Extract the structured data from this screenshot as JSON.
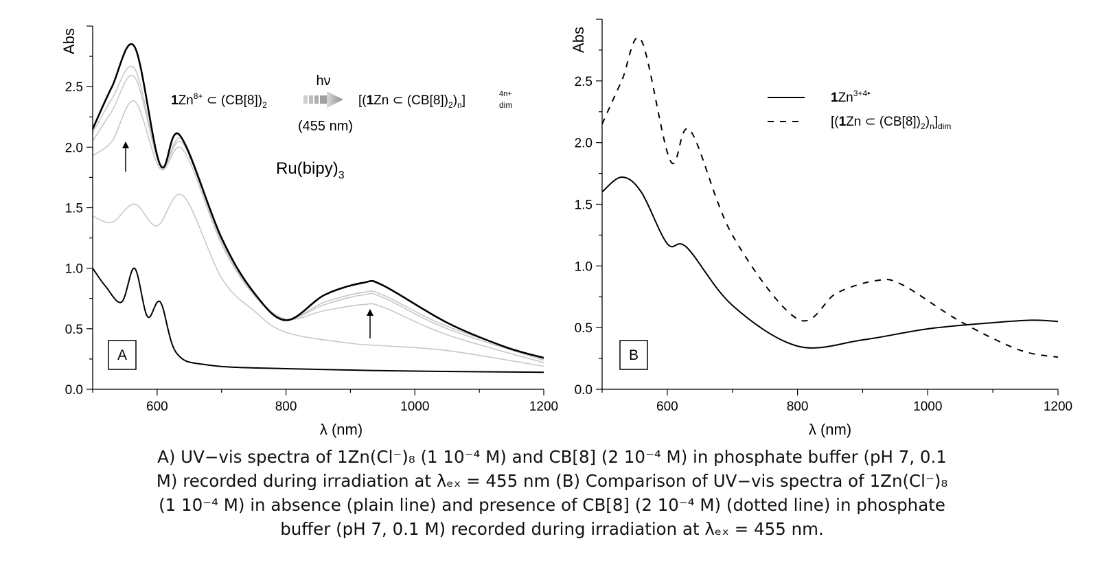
{
  "chart_data": [
    {
      "type": "line",
      "panel_label": "A",
      "ylabel": "Abs",
      "xlabel": "λ (nm)",
      "xlim": [
        500,
        1200
      ],
      "ylim": [
        0,
        3.0
      ],
      "x_ticks": [
        "600",
        "800",
        "1000",
        "1200"
      ],
      "y_ticks": [
        "0.0",
        "0.5",
        "1.0",
        "1.5",
        "2.0",
        "2.5"
      ],
      "grid": false,
      "colors": {
        "final": "#000000",
        "initial": "#000000",
        "intermediate": "#c8c8c8"
      },
      "annotations": {
        "scheme_left": "1Zn8+ ⊂ (CB[8])2",
        "hv": "hν",
        "wavelength": "(455 nm)",
        "scheme_right": "[(1Zn ⊂ (CB[8])2)n]4n+dim",
        "sensitizer": "Ru(bipy)3"
      },
      "series": [
        {
          "role": "initial",
          "style": "solid-black",
          "x": [
            500,
            520,
            545,
            565,
            585,
            605,
            630,
            680,
            800,
            1000,
            1200
          ],
          "y": [
            1.0,
            0.85,
            0.72,
            1.0,
            0.6,
            0.72,
            0.3,
            0.2,
            0.17,
            0.15,
            0.14
          ]
        },
        {
          "role": "intermediate",
          "style": "solid-grey",
          "x": [
            500,
            530,
            565,
            600,
            640,
            700,
            750,
            800,
            900,
            950,
            1050,
            1200
          ],
          "y": [
            1.43,
            1.38,
            1.53,
            1.35,
            1.6,
            0.92,
            0.65,
            0.47,
            0.38,
            0.36,
            0.32,
            0.19
          ]
        },
        {
          "role": "intermediate",
          "style": "solid-grey",
          "x": [
            500,
            530,
            565,
            605,
            640,
            700,
            750,
            800,
            860,
            920,
            950,
            1050,
            1200
          ],
          "y": [
            1.93,
            2.05,
            2.38,
            1.82,
            1.98,
            1.2,
            0.78,
            0.58,
            0.65,
            0.7,
            0.68,
            0.45,
            0.22
          ]
        },
        {
          "role": "intermediate",
          "style": "solid-grey",
          "x": [
            500,
            530,
            565,
            605,
            640,
            700,
            750,
            800,
            860,
            920,
            950,
            1050,
            1200
          ],
          "y": [
            2.05,
            2.3,
            2.58,
            1.85,
            2.03,
            1.22,
            0.79,
            0.58,
            0.7,
            0.78,
            0.76,
            0.5,
            0.24
          ]
        },
        {
          "role": "intermediate",
          "style": "solid-grey",
          "x": [
            500,
            530,
            565,
            605,
            640,
            700,
            750,
            800,
            860,
            920,
            950,
            1050,
            1200
          ],
          "y": [
            2.12,
            2.4,
            2.65,
            1.86,
            2.06,
            1.24,
            0.8,
            0.58,
            0.72,
            0.8,
            0.78,
            0.52,
            0.25
          ]
        },
        {
          "role": "final",
          "style": "solid-black-bold",
          "x": [
            500,
            530,
            565,
            605,
            635,
            700,
            750,
            800,
            860,
            920,
            950,
            1050,
            1140,
            1200
          ],
          "y": [
            2.15,
            2.5,
            2.83,
            1.85,
            2.1,
            1.25,
            0.8,
            0.57,
            0.78,
            0.88,
            0.86,
            0.55,
            0.35,
            0.26
          ]
        }
      ]
    },
    {
      "type": "line",
      "panel_label": "B",
      "ylabel": "Abs",
      "xlabel": "λ (nm)",
      "xlim": [
        500,
        1200
      ],
      "ylim": [
        0,
        3.0
      ],
      "x_ticks": [
        "600",
        "800",
        "1000",
        "1200"
      ],
      "y_ticks": [
        "0.0",
        "0.5",
        "1.0",
        "1.5",
        "2.0",
        "2.5"
      ],
      "grid": false,
      "legend_position": "top-right",
      "series": [
        {
          "name": "1Zn3+4•",
          "style": "solid",
          "x": [
            500,
            530,
            560,
            600,
            630,
            700,
            800,
            900,
            1000,
            1100,
            1160,
            1200
          ],
          "y": [
            1.6,
            1.72,
            1.6,
            1.18,
            1.15,
            0.68,
            0.35,
            0.4,
            0.49,
            0.54,
            0.56,
            0.55
          ]
        },
        {
          "name": "[(1Zn ⊂ (CB[8])2)n]dim",
          "style": "dashed",
          "x": [
            500,
            530,
            560,
            605,
            635,
            700,
            800,
            860,
            920,
            960,
            1050,
            1140,
            1200
          ],
          "y": [
            2.15,
            2.5,
            2.83,
            1.85,
            2.1,
            1.25,
            0.57,
            0.78,
            0.88,
            0.85,
            0.55,
            0.32,
            0.26
          ]
        }
      ]
    }
  ],
  "caption": {
    "line1": "A) UV−vis spectra of 1Zn(Cl⁻)₈ (1 10⁻⁴ M) and CB[8] (2 10⁻⁴ M) in phosphate buffer (pH 7, 0.1",
    "line2": "M) recorded during irradiation at λₑₓ = 455 nm  (B) Comparison of UV−vis spectra of 1Zn(Cl⁻)₈",
    "line3": "(1 10⁻⁴ M) in absence (plain line) and presence of CB[8] (2 10⁻⁴ M) (dotted line) in phosphate",
    "line4": "buffer (pH 7, 0.1 M) recorded during irradiation at λₑₓ = 455 nm."
  }
}
